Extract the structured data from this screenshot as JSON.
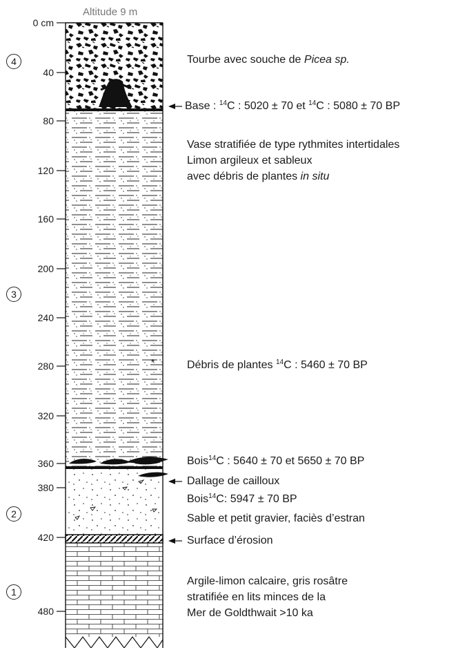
{
  "header": {
    "depth_zero": "0 cm",
    "altitude": "Altitude 9 m"
  },
  "depth_ticks": [
    "40",
    "80",
    "120",
    "160",
    "200",
    "240",
    "280",
    "320",
    "360",
    "380",
    "420",
    "480"
  ],
  "unit_numbers": [
    "4",
    "3",
    "2",
    "1"
  ],
  "annotations": {
    "tourbe_1": "Tourbe avec souche de ",
    "tourbe_taxon": "Picea sp.",
    "base_1": "Base : ",
    "base_sup1": "14",
    "base_2": "C : 5020 ± 70 et ",
    "base_sup2": "14",
    "base_3": "C : 5080 ± 70 BP",
    "vase_line1": "Vase stratifiée de type rythmites intertidales",
    "vase_line2": "Limon argileux et sableux",
    "vase_line3_a": "avec débris de plantes ",
    "vase_line3_b": "in situ",
    "debris_1": "Débris de plantes ",
    "debris_sup": "14",
    "debris_2": "C : 5460 ± 70 BP",
    "bois1_1": "Bois",
    "bois1_sup": "14",
    "bois1_2": "C : 5640 ± 70 et 5650 ± 70 BP",
    "dallage": "Dallage de cailloux",
    "bois2_1": "Bois",
    "bois2_sup": "14",
    "bois2_2": "C: 5947 ±  70 BP",
    "sable": "Sable et petit gravier, faciès d’estran",
    "surface": "Surface d’érosion",
    "argile_line1": "Argile-limon calcaire, gris rosâtre",
    "argile_line2": "stratifiée en lits minces de la",
    "argile_line3": "Mer de Goldthwait >10 ka"
  },
  "colors": {
    "ink": "#1a1a1a",
    "muted": "#777777",
    "background": "#ffffff"
  }
}
